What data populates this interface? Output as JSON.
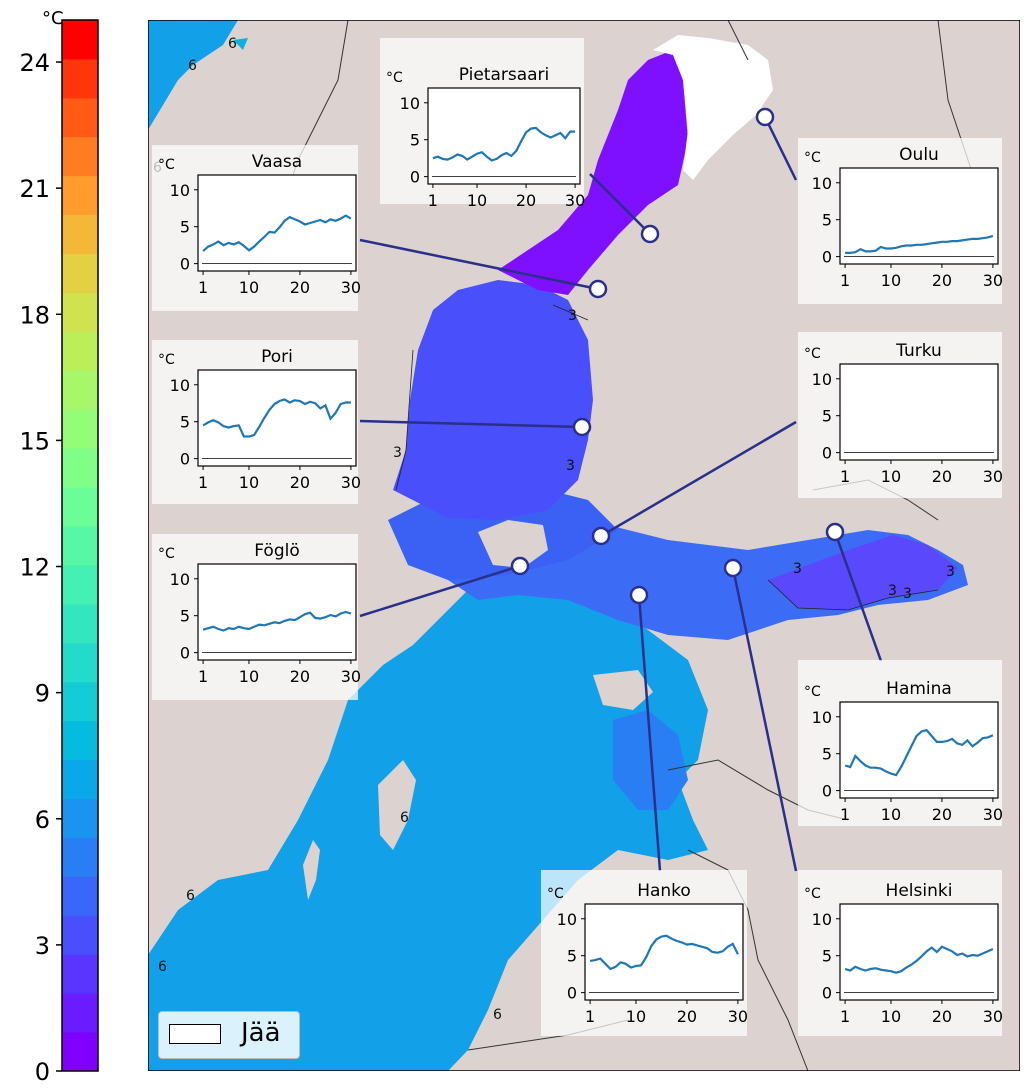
{
  "colorbar": {
    "unit": "°C",
    "ticks": [
      0,
      3,
      6,
      9,
      12,
      15,
      18,
      21,
      24
    ],
    "range": [
      0,
      25
    ],
    "colors": [
      "#7f00ff",
      "#6a1cff",
      "#5a35fd",
      "#4a4ffc",
      "#3a66f9",
      "#2a7ef4",
      "#1a94ef",
      "#0aa8e8",
      "#05bbde",
      "#14ccd5",
      "#24dbcb",
      "#34e6bf",
      "#44f0b3",
      "#58f7a6",
      "#6cfc98",
      "#80fe88",
      "#94fc79",
      "#a8f66a",
      "#bcee5c",
      "#d0e24f",
      "#e4d043",
      "#f4b838",
      "#ff9c2d",
      "#ff7d22",
      "#ff5b17",
      "#ff360c",
      "#ff0000"
    ]
  },
  "map": {
    "colors": {
      "land": "#dcd3d1",
      "sea_deep": "#12a0e8",
      "sea_mid": "#3c6cf6",
      "sea_bothnia": "#4a4ffc",
      "sea_north": "#7e10ff",
      "ice": "#ffffff",
      "border": "#333333",
      "line": "#2a2f8a"
    },
    "contour_labels": [
      {
        "text": "6"
      },
      {
        "text": "6"
      },
      {
        "text": "6"
      },
      {
        "text": "3"
      },
      {
        "text": "3"
      },
      {
        "text": "3"
      },
      {
        "text": "3"
      },
      {
        "text": "3"
      },
      {
        "text": "3"
      },
      {
        "text": "3"
      },
      {
        "text": "6"
      },
      {
        "text": "6"
      },
      {
        "text": "6"
      },
      {
        "text": "6"
      }
    ]
  },
  "legend": {
    "label": "Jää"
  },
  "chart_data": [
    {
      "type": "line",
      "title": "Pietarsaari",
      "ylabel": "°C",
      "x": [
        1,
        2,
        3,
        4,
        5,
        6,
        7,
        8,
        9,
        10,
        11,
        12,
        13,
        14,
        15,
        16,
        17,
        18,
        19,
        20,
        21,
        22,
        23,
        24,
        25,
        26,
        27,
        28,
        29,
        30
      ],
      "values": [
        2.5,
        2.7,
        2.4,
        2.3,
        2.6,
        3.0,
        2.8,
        2.3,
        2.7,
        3.1,
        3.3,
        2.7,
        2.2,
        2.4,
        2.9,
        3.2,
        2.8,
        3.5,
        4.8,
        6.0,
        6.5,
        6.6,
        6.0,
        5.6,
        5.3,
        5.6,
        5.9,
        5.2,
        6.1,
        6.1
      ],
      "xticks": [
        1,
        10,
        20,
        30
      ],
      "yticks": [
        0,
        5,
        10
      ],
      "ylim": [
        -1,
        12
      ]
    },
    {
      "type": "line",
      "title": "Vaasa",
      "ylabel": "°C",
      "x": [
        1,
        2,
        3,
        4,
        5,
        6,
        7,
        8,
        9,
        10,
        11,
        12,
        13,
        14,
        15,
        16,
        17,
        18,
        19,
        20,
        21,
        22,
        23,
        24,
        25,
        26,
        27,
        28,
        29,
        30
      ],
      "values": [
        1.7,
        2.3,
        2.6,
        3.0,
        2.5,
        2.8,
        2.6,
        2.9,
        2.4,
        1.8,
        2.3,
        3.0,
        3.6,
        4.3,
        4.2,
        4.9,
        5.8,
        6.3,
        6.0,
        5.7,
        5.3,
        5.5,
        5.7,
        5.9,
        5.6,
        6.0,
        5.8,
        6.1,
        6.5,
        6.1
      ],
      "xticks": [
        1,
        10,
        20,
        30
      ],
      "yticks": [
        0,
        5,
        10
      ],
      "ylim": [
        -1,
        12
      ]
    },
    {
      "type": "line",
      "title": "Oulu",
      "ylabel": "°C",
      "x": [
        1,
        2,
        3,
        4,
        5,
        6,
        7,
        8,
        9,
        10,
        11,
        12,
        13,
        14,
        15,
        16,
        17,
        18,
        19,
        20,
        21,
        22,
        23,
        24,
        25,
        26,
        27,
        28,
        29,
        30
      ],
      "values": [
        0.5,
        0.5,
        0.6,
        1.0,
        0.7,
        0.7,
        0.8,
        1.3,
        1.1,
        1.1,
        1.2,
        1.4,
        1.5,
        1.5,
        1.6,
        1.6,
        1.7,
        1.8,
        1.9,
        2.0,
        2.0,
        2.1,
        2.1,
        2.2,
        2.3,
        2.4,
        2.4,
        2.5,
        2.6,
        2.8
      ],
      "xticks": [
        1,
        10,
        20,
        30
      ],
      "yticks": [
        0,
        5,
        10
      ],
      "ylim": [
        -1,
        12
      ]
    },
    {
      "type": "line",
      "title": "Pori",
      "ylabel": "°C",
      "x": [
        1,
        2,
        3,
        4,
        5,
        6,
        7,
        8,
        9,
        10,
        11,
        12,
        13,
        14,
        15,
        16,
        17,
        18,
        19,
        20,
        21,
        22,
        23,
        24,
        25,
        26,
        27,
        28,
        29,
        30
      ],
      "values": [
        4.5,
        4.9,
        5.2,
        4.9,
        4.4,
        4.2,
        4.4,
        4.5,
        3.0,
        3.0,
        3.2,
        4.3,
        5.5,
        6.6,
        7.4,
        7.8,
        8.0,
        7.6,
        7.9,
        7.8,
        7.4,
        7.7,
        7.5,
        6.8,
        7.2,
        5.4,
        6.2,
        7.4,
        7.6,
        7.6
      ],
      "xticks": [
        1,
        10,
        20,
        30
      ],
      "yticks": [
        0,
        5,
        10
      ],
      "ylim": [
        -1,
        12
      ]
    },
    {
      "type": "line",
      "title": "Turku",
      "ylabel": "°C",
      "x": [],
      "values": [],
      "xticks": [
        1,
        10,
        20,
        30
      ],
      "yticks": [
        0,
        5,
        10
      ],
      "ylim": [
        -1,
        12
      ]
    },
    {
      "type": "line",
      "title": "Föglö",
      "ylabel": "°C",
      "x": [
        1,
        2,
        3,
        4,
        5,
        6,
        7,
        8,
        9,
        10,
        11,
        12,
        13,
        14,
        15,
        16,
        17,
        18,
        19,
        20,
        21,
        22,
        23,
        24,
        25,
        26,
        27,
        28,
        29,
        30
      ],
      "values": [
        3.1,
        3.3,
        3.5,
        3.2,
        3.0,
        3.3,
        3.2,
        3.5,
        3.3,
        3.2,
        3.5,
        3.8,
        3.7,
        3.9,
        4.1,
        4.0,
        4.3,
        4.5,
        4.4,
        4.8,
        5.2,
        5.4,
        4.7,
        4.6,
        4.8,
        5.1,
        4.9,
        5.3,
        5.5,
        5.3
      ],
      "xticks": [
        1,
        10,
        20,
        30
      ],
      "yticks": [
        0,
        5,
        10
      ],
      "ylim": [
        -1,
        12
      ]
    },
    {
      "type": "line",
      "title": "Hamina",
      "ylabel": "°C",
      "x": [
        1,
        2,
        3,
        4,
        5,
        6,
        7,
        8,
        9,
        10,
        11,
        12,
        13,
        14,
        15,
        16,
        17,
        18,
        19,
        20,
        21,
        22,
        23,
        24,
        25,
        26,
        27,
        28,
        29,
        30
      ],
      "values": [
        3.4,
        3.2,
        4.7,
        4.0,
        3.4,
        3.1,
        3.1,
        3.0,
        2.6,
        2.3,
        2.1,
        3.2,
        4.6,
        6.0,
        7.4,
        8.0,
        8.2,
        7.4,
        6.6,
        6.6,
        6.7,
        7.0,
        6.4,
        6.2,
        6.8,
        6.0,
        6.5,
        7.1,
        7.2,
        7.5
      ],
      "xticks": [
        1,
        10,
        20,
        30
      ],
      "yticks": [
        0,
        5,
        10
      ],
      "ylim": [
        -1,
        12
      ]
    },
    {
      "type": "line",
      "title": "Hanko",
      "ylabel": "°C",
      "x": [
        1,
        2,
        3,
        4,
        5,
        6,
        7,
        8,
        9,
        10,
        11,
        12,
        13,
        14,
        15,
        16,
        17,
        18,
        19,
        20,
        21,
        22,
        23,
        24,
        25,
        26,
        27,
        28,
        29,
        30
      ],
      "values": [
        4.3,
        4.4,
        4.6,
        3.9,
        3.2,
        3.5,
        4.1,
        3.9,
        3.4,
        3.6,
        3.7,
        4.8,
        6.3,
        7.2,
        7.6,
        7.7,
        7.3,
        7.0,
        6.8,
        6.5,
        6.6,
        6.4,
        6.2,
        6.0,
        5.5,
        5.4,
        5.6,
        6.2,
        6.6,
        5.2
      ],
      "xticks": [
        1,
        10,
        20,
        30
      ],
      "yticks": [
        0,
        5,
        10
      ],
      "ylim": [
        -1,
        12
      ]
    },
    {
      "type": "line",
      "title": "Helsinki",
      "ylabel": "°C",
      "x": [
        1,
        2,
        3,
        4,
        5,
        6,
        7,
        8,
        9,
        10,
        11,
        12,
        13,
        14,
        15,
        16,
        17,
        18,
        19,
        20,
        21,
        22,
        23,
        24,
        25,
        26,
        27,
        28,
        29,
        30
      ],
      "values": [
        3.2,
        3.0,
        3.5,
        3.2,
        3.0,
        3.2,
        3.3,
        3.1,
        3.0,
        2.9,
        2.7,
        2.9,
        3.4,
        3.8,
        4.3,
        4.9,
        5.6,
        6.1,
        5.5,
        6.2,
        5.9,
        5.6,
        5.1,
        5.3,
        4.9,
        5.1,
        5.0,
        5.3,
        5.6,
        5.9
      ],
      "xticks": [
        1,
        10,
        20,
        30
      ],
      "yticks": [
        0,
        5,
        10
      ],
      "ylim": [
        -1,
        12
      ]
    }
  ]
}
